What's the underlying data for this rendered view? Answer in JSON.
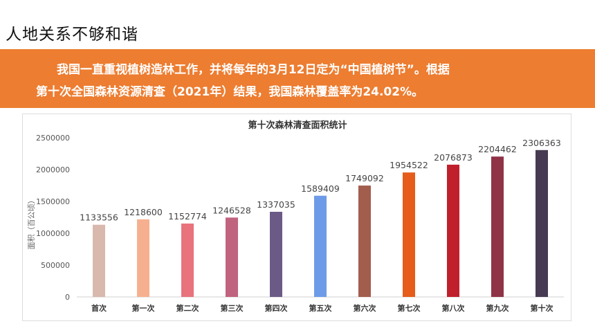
{
  "slide": {
    "title": "人地关系不够和谐",
    "banner_line1": "我国一直重视植树造林工作，并将每年的3月12日定为“中国植树节”。根据",
    "banner_line2": "第十次全国森林资源清查（2021年）结果，我国森林覆盖率为24.02%。"
  },
  "chart_data": {
    "type": "bar",
    "title": "第十次森林清查面积统计",
    "ylabel": "面积（百公顷）",
    "xlabel": "",
    "ylim": [
      0,
      2500000
    ],
    "yticks": [
      "0",
      "500000",
      "1000000",
      "1500000",
      "2000000",
      "2500000"
    ],
    "grid": false,
    "categories": [
      "首次",
      "第一次",
      "第二次",
      "第三次",
      "第四次",
      "第五次",
      "第六次",
      "第七次",
      "第八次",
      "第九次",
      "第十次"
    ],
    "values": [
      1133556,
      1218600,
      1152774,
      1246528,
      1337035,
      1589409,
      1749092,
      1954522,
      2076873,
      2204462,
      2306363
    ],
    "colors": [
      "#d9b8ae",
      "#f7b08f",
      "#e8737d",
      "#c0637f",
      "#6b5a86",
      "#6e9be8",
      "#a25d4d",
      "#e65c1a",
      "#c0202c",
      "#8f3347",
      "#463a52"
    ]
  }
}
